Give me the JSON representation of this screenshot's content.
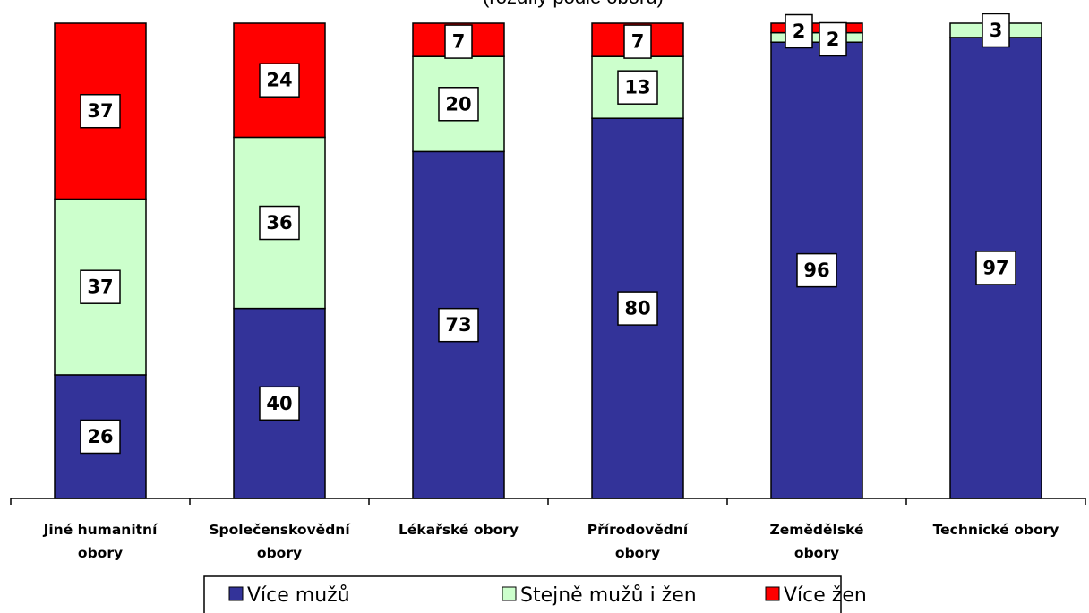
{
  "chart_data": {
    "type": "bar",
    "stacked": true,
    "percent_scale": true,
    "subtitle": "(rozdíly podle oborů)",
    "categories": [
      [
        "Jiné humanitní",
        "obory"
      ],
      [
        "Společenskovědní",
        "obory"
      ],
      [
        "Lékařské obory"
      ],
      [
        "Přírodovědní",
        "obory"
      ],
      [
        "Zemědělské",
        "obory"
      ],
      [
        "Technické obory"
      ]
    ],
    "series": [
      {
        "name": "Více mužů",
        "color": "#333399",
        "values": [
          26,
          40,
          73,
          80,
          96,
          97
        ]
      },
      {
        "name": "Stejně mužů i žen",
        "color": "#CCFFCC",
        "values": [
          37,
          36,
          20,
          13,
          2,
          3
        ]
      },
      {
        "name": "Více žen",
        "color": "#FF0000",
        "values": [
          37,
          24,
          7,
          7,
          2,
          null
        ]
      }
    ],
    "ylim": [
      0,
      100
    ],
    "grid": false,
    "legend_position": "bottom"
  }
}
